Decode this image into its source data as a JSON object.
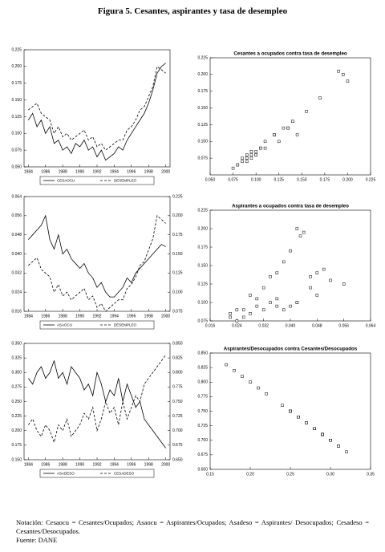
{
  "figure_title": "Figura 5. Cesantes, aspirantes y tasa de desempleo",
  "note": "Notación: Cesaocu = Cesantes/Ocupados; Asaocu = Aspirantes/Ocupados; Asadeso = Aspirantes/ Desocupados; Cesadeso = Cesantes/Desocupados.",
  "source": "Fuente: DANE",
  "chart_data": [
    {
      "type": "line",
      "x": [
        1984,
        1984.5,
        1985,
        1985.5,
        1986,
        1986.5,
        1987,
        1987.5,
        1988,
        1988.5,
        1989,
        1989.5,
        1990,
        1990.5,
        1991,
        1991.5,
        1992,
        1992.5,
        1993,
        1993.5,
        1994,
        1994.5,
        1995,
        1995.5,
        1996,
        1996.5,
        1997,
        1997.5,
        1998,
        1998.5,
        1999,
        1999.5,
        2000
      ],
      "xlim": [
        1983.5,
        2000.5
      ],
      "xticks": [
        1984,
        1986,
        1988,
        1990,
        1992,
        1994,
        1996,
        1998,
        2000
      ],
      "ylim": [
        0.05,
        0.225
      ],
      "yticks": [
        {
          "value": 0.05,
          "label": "0.050"
        },
        {
          "value": 0.075,
          "label": "0.075"
        },
        {
          "value": 0.1,
          "label": "0.100"
        },
        {
          "value": 0.125,
          "label": "0.125"
        },
        {
          "value": 0.15,
          "label": "0.150"
        },
        {
          "value": 0.175,
          "label": "0.175"
        },
        {
          "value": 0.2,
          "label": "0.200"
        },
        {
          "value": 0.225,
          "label": "0.225"
        }
      ],
      "series": [
        {
          "name": "CESAOCU",
          "color": "#000000",
          "dash": false,
          "values": [
            0.12,
            0.13,
            0.11,
            0.12,
            0.1,
            0.11,
            0.085,
            0.09,
            0.075,
            0.08,
            0.07,
            0.085,
            0.08,
            0.09,
            0.075,
            0.08,
            0.065,
            0.075,
            0.06,
            0.065,
            0.07,
            0.08,
            0.075,
            0.09,
            0.1,
            0.11,
            0.12,
            0.13,
            0.145,
            0.165,
            0.19,
            0.2,
            0.205
          ]
        },
        {
          "name": "DESEMPLEO",
          "color": "#000000",
          "dash": true,
          "values": [
            0.135,
            0.14,
            0.145,
            0.13,
            0.125,
            0.12,
            0.1,
            0.11,
            0.095,
            0.1,
            0.09,
            0.095,
            0.1,
            0.105,
            0.09,
            0.095,
            0.08,
            0.085,
            0.075,
            0.08,
            0.085,
            0.09,
            0.09,
            0.105,
            0.11,
            0.12,
            0.135,
            0.14,
            0.155,
            0.17,
            0.2,
            0.195,
            0.19
          ]
        }
      ]
    },
    {
      "type": "line",
      "x": [
        1984,
        1984.5,
        1985,
        1985.5,
        1986,
        1986.5,
        1987,
        1987.5,
        1988,
        1988.5,
        1989,
        1989.5,
        1990,
        1990.5,
        1991,
        1991.5,
        1992,
        1992.5,
        1993,
        1993.5,
        1994,
        1994.5,
        1995,
        1995.5,
        1996,
        1996.5,
        1997,
        1997.5,
        1998,
        1998.5,
        1999,
        1999.5,
        2000
      ],
      "xlim": [
        1983.5,
        2000.5
      ],
      "xticks": [
        1984,
        1986,
        1988,
        1990,
        1992,
        1994,
        1996,
        1998,
        2000
      ],
      "ylim": [
        0.016,
        0.064
      ],
      "yticks": [
        {
          "value": 0.016,
          "label": "0.016"
        },
        {
          "value": 0.024,
          "label": "0.024"
        },
        {
          "value": 0.032,
          "label": "0.032"
        },
        {
          "value": 0.04,
          "label": "0.040"
        },
        {
          "value": 0.048,
          "label": "0.048"
        },
        {
          "value": 0.056,
          "label": "0.056"
        },
        {
          "value": 0.064,
          "label": "0.064"
        }
      ],
      "y2lim": [
        0.075,
        0.225
      ],
      "y2ticks": [
        {
          "value": 0.075,
          "label": "0.075"
        },
        {
          "value": 0.1,
          "label": "0.100"
        },
        {
          "value": 0.125,
          "label": "0.125"
        },
        {
          "value": 0.15,
          "label": "0.150"
        },
        {
          "value": 0.175,
          "label": "0.175"
        },
        {
          "value": 0.2,
          "label": "0.200"
        },
        {
          "value": 0.225,
          "label": "0.225"
        }
      ],
      "series": [
        {
          "name": "ASAOCU",
          "color": "#000000",
          "dash": false,
          "values": [
            0.046,
            0.048,
            0.05,
            0.052,
            0.056,
            0.046,
            0.042,
            0.048,
            0.04,
            0.042,
            0.038,
            0.036,
            0.034,
            0.036,
            0.032,
            0.03,
            0.026,
            0.028,
            0.024,
            0.022,
            0.022,
            0.024,
            0.026,
            0.03,
            0.028,
            0.032,
            0.034,
            0.036,
            0.038,
            0.04,
            0.042,
            0.044,
            0.043
          ]
        },
        {
          "name": "DESEMPLEO",
          "color": "#000000",
          "dash": true,
          "axis": "y2",
          "values": [
            0.135,
            0.14,
            0.145,
            0.13,
            0.125,
            0.12,
            0.1,
            0.11,
            0.095,
            0.1,
            0.09,
            0.095,
            0.1,
            0.105,
            0.09,
            0.095,
            0.08,
            0.085,
            0.075,
            0.08,
            0.085,
            0.09,
            0.09,
            0.105,
            0.11,
            0.12,
            0.135,
            0.14,
            0.155,
            0.17,
            0.2,
            0.195,
            0.19
          ]
        }
      ]
    },
    {
      "type": "line",
      "x": [
        1984,
        1984.5,
        1985,
        1985.5,
        1986,
        1986.5,
        1987,
        1987.5,
        1988,
        1988.5,
        1989,
        1989.5,
        1990,
        1990.5,
        1991,
        1991.5,
        1992,
        1992.5,
        1993,
        1993.5,
        1994,
        1994.5,
        1995,
        1995.5,
        1996,
        1996.5,
        1997,
        1997.5,
        1998,
        1998.5,
        1999,
        1999.5,
        2000
      ],
      "xlim": [
        1983.5,
        2000.5
      ],
      "xticks": [
        1984,
        1986,
        1988,
        1990,
        1992,
        1994,
        1996,
        1998,
        2000
      ],
      "ylim": [
        0.15,
        0.35
      ],
      "yticks": [
        {
          "value": 0.15,
          "label": "0.150"
        },
        {
          "value": 0.175,
          "label": "0.175"
        },
        {
          "value": 0.2,
          "label": "0.200"
        },
        {
          "value": 0.225,
          "label": "0.225"
        },
        {
          "value": 0.25,
          "label": "0.250"
        },
        {
          "value": 0.275,
          "label": "0.275"
        },
        {
          "value": 0.3,
          "label": "0.300"
        },
        {
          "value": 0.325,
          "label": "0.325"
        },
        {
          "value": 0.35,
          "label": "0.350"
        }
      ],
      "y2lim": [
        0.65,
        0.85
      ],
      "y2ticks": [
        {
          "value": 0.65,
          "label": "0.650"
        },
        {
          "value": 0.675,
          "label": "0.675"
        },
        {
          "value": 0.7,
          "label": "0.700"
        },
        {
          "value": 0.725,
          "label": "0.725"
        },
        {
          "value": 0.75,
          "label": "0.750"
        },
        {
          "value": 0.775,
          "label": "0.775"
        },
        {
          "value": 0.8,
          "label": "0.800"
        },
        {
          "value": 0.825,
          "label": "0.825"
        },
        {
          "value": 0.85,
          "label": "0.850"
        }
      ],
      "series": [
        {
          "name": "ASADESO",
          "color": "#000000",
          "dash": false,
          "values": [
            0.29,
            0.28,
            0.3,
            0.31,
            0.29,
            0.3,
            0.32,
            0.29,
            0.3,
            0.28,
            0.31,
            0.3,
            0.29,
            0.27,
            0.28,
            0.26,
            0.3,
            0.28,
            0.25,
            0.27,
            0.26,
            0.29,
            0.25,
            0.28,
            0.26,
            0.24,
            0.25,
            0.22,
            0.21,
            0.2,
            0.19,
            0.18,
            0.17
          ]
        },
        {
          "name": "CESADESO",
          "color": "#000000",
          "dash": true,
          "axis": "y2",
          "values": [
            0.71,
            0.72,
            0.7,
            0.69,
            0.71,
            0.7,
            0.68,
            0.71,
            0.7,
            0.72,
            0.69,
            0.7,
            0.71,
            0.73,
            0.72,
            0.74,
            0.7,
            0.72,
            0.75,
            0.73,
            0.74,
            0.71,
            0.75,
            0.72,
            0.74,
            0.76,
            0.75,
            0.78,
            0.79,
            0.8,
            0.81,
            0.82,
            0.83
          ]
        }
      ]
    },
    {
      "type": "scatter",
      "title": "Cesantes a ocupados contra tasa de desempleo",
      "x": [
        0.135,
        0.14,
        0.145,
        0.13,
        0.125,
        0.12,
        0.1,
        0.11,
        0.095,
        0.1,
        0.09,
        0.095,
        0.1,
        0.105,
        0.09,
        0.095,
        0.08,
        0.085,
        0.075,
        0.08,
        0.085,
        0.09,
        0.09,
        0.105,
        0.11,
        0.12,
        0.135,
        0.14,
        0.155,
        0.17,
        0.2,
        0.195,
        0.19
      ],
      "y": [
        0.12,
        0.13,
        0.11,
        0.12,
        0.1,
        0.11,
        0.085,
        0.09,
        0.075,
        0.08,
        0.07,
        0.085,
        0.08,
        0.09,
        0.075,
        0.08,
        0.065,
        0.075,
        0.06,
        0.065,
        0.07,
        0.08,
        0.075,
        0.09,
        0.1,
        0.11,
        0.12,
        0.13,
        0.145,
        0.165,
        0.19,
        0.2,
        0.205
      ],
      "xlim": [
        0.05,
        0.225
      ],
      "xticks": [
        {
          "value": 0.05,
          "label": "0.050"
        },
        {
          "value": 0.075,
          "label": "0.075"
        },
        {
          "value": 0.1,
          "label": "0.100"
        },
        {
          "value": 0.125,
          "label": "0.125"
        },
        {
          "value": 0.15,
          "label": "0.150"
        },
        {
          "value": 0.175,
          "label": "0.175"
        },
        {
          "value": 0.2,
          "label": "0.200"
        },
        {
          "value": 0.225,
          "label": "0.225"
        }
      ],
      "ylim": [
        0.05,
        0.225
      ],
      "yticks": [
        {
          "value": 0.075,
          "label": "0.075"
        },
        {
          "value": 0.1,
          "label": "0.100"
        },
        {
          "value": 0.125,
          "label": "0.125"
        },
        {
          "value": 0.15,
          "label": "0.150"
        },
        {
          "value": 0.175,
          "label": "0.175"
        },
        {
          "value": 0.2,
          "label": "0.200"
        },
        {
          "value": 0.225,
          "label": "0.225"
        }
      ]
    },
    {
      "type": "scatter",
      "title": "Aspirantes a ocupados contra tasa de desempleo",
      "x": [
        0.046,
        0.048,
        0.05,
        0.052,
        0.056,
        0.046,
        0.042,
        0.048,
        0.04,
        0.042,
        0.038,
        0.036,
        0.034,
        0.036,
        0.032,
        0.03,
        0.026,
        0.028,
        0.024,
        0.022,
        0.022,
        0.024,
        0.026,
        0.03,
        0.028,
        0.032,
        0.034,
        0.036,
        0.038,
        0.04,
        0.042,
        0.044,
        0.043
      ],
      "y": [
        0.135,
        0.14,
        0.145,
        0.13,
        0.125,
        0.12,
        0.1,
        0.11,
        0.095,
        0.1,
        0.09,
        0.095,
        0.1,
        0.105,
        0.09,
        0.095,
        0.08,
        0.085,
        0.075,
        0.08,
        0.085,
        0.09,
        0.09,
        0.105,
        0.11,
        0.12,
        0.135,
        0.14,
        0.155,
        0.17,
        0.2,
        0.195,
        0.19
      ],
      "xlim": [
        0.016,
        0.064
      ],
      "xticks": [
        {
          "value": 0.016,
          "label": "0.016"
        },
        {
          "value": 0.024,
          "label": "0.024"
        },
        {
          "value": 0.032,
          "label": "0.032"
        },
        {
          "value": 0.04,
          "label": "0.040"
        },
        {
          "value": 0.048,
          "label": "0.048"
        },
        {
          "value": 0.056,
          "label": "0.056"
        },
        {
          "value": 0.064,
          "label": "0.064"
        }
      ],
      "ylim": [
        0.075,
        0.225
      ],
      "yticks": [
        {
          "value": 0.075,
          "label": "0.075"
        },
        {
          "value": 0.1,
          "label": "0.100"
        },
        {
          "value": 0.125,
          "label": "0.125"
        },
        {
          "value": 0.15,
          "label": "0.150"
        },
        {
          "value": 0.175,
          "label": "0.175"
        },
        {
          "value": 0.2,
          "label": "0.200"
        },
        {
          "value": 0.225,
          "label": "0.225"
        }
      ]
    },
    {
      "type": "scatter",
      "title": "Aspirantes/Desocupados contra Cesantes/Desocupados",
      "x": [
        0.29,
        0.28,
        0.3,
        0.31,
        0.29,
        0.3,
        0.32,
        0.29,
        0.3,
        0.28,
        0.31,
        0.3,
        0.29,
        0.27,
        0.28,
        0.26,
        0.3,
        0.28,
        0.25,
        0.27,
        0.26,
        0.29,
        0.25,
        0.28,
        0.26,
        0.24,
        0.25,
        0.22,
        0.21,
        0.2,
        0.19,
        0.18,
        0.17
      ],
      "y": [
        0.71,
        0.72,
        0.7,
        0.69,
        0.71,
        0.7,
        0.68,
        0.71,
        0.7,
        0.72,
        0.69,
        0.7,
        0.71,
        0.73,
        0.72,
        0.74,
        0.7,
        0.72,
        0.75,
        0.73,
        0.74,
        0.71,
        0.75,
        0.72,
        0.74,
        0.76,
        0.75,
        0.78,
        0.79,
        0.8,
        0.81,
        0.82,
        0.83
      ],
      "xlim": [
        0.15,
        0.35
      ],
      "xticks": [
        {
          "value": 0.15,
          "label": "0.15"
        },
        {
          "value": 0.2,
          "label": "0.20"
        },
        {
          "value": 0.25,
          "label": "0.25"
        },
        {
          "value": 0.3,
          "label": "0.30"
        },
        {
          "value": 0.35,
          "label": "0.35"
        }
      ],
      "ylim": [
        0.65,
        0.85
      ],
      "yticks": [
        {
          "value": 0.65,
          "label": "0.650"
        },
        {
          "value": 0.675,
          "label": "0.675"
        },
        {
          "value": 0.7,
          "label": "0.700"
        },
        {
          "value": 0.725,
          "label": "0.725"
        },
        {
          "value": 0.75,
          "label": "0.750"
        },
        {
          "value": 0.775,
          "label": "0.775"
        },
        {
          "value": 0.8,
          "label": "0.800"
        },
        {
          "value": 0.825,
          "label": "0.825"
        },
        {
          "value": 0.85,
          "label": "0.850"
        }
      ]
    }
  ]
}
